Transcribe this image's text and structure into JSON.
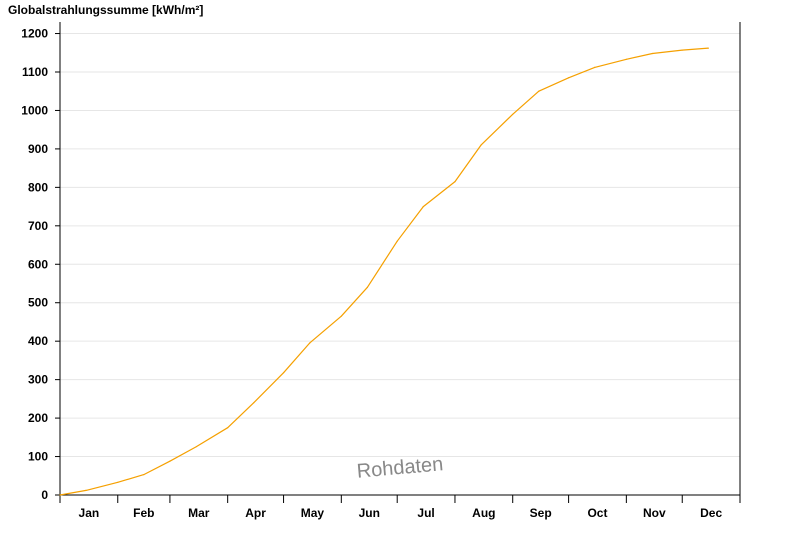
{
  "chart_data": {
    "type": "line",
    "title": "",
    "xlabel": "",
    "ylabel": "Globalstrahlungssumme [kWh/m²]",
    "ylim": [
      0,
      1230
    ],
    "yticks": [
      0,
      100,
      200,
      300,
      400,
      500,
      600,
      700,
      800,
      900,
      1000,
      1100,
      1200
    ],
    "categories": [
      "Jan",
      "Feb",
      "Mar",
      "Apr",
      "May",
      "Jun",
      "Jul",
      "Aug",
      "Sep",
      "Oct",
      "Nov",
      "Dec"
    ],
    "grid": true,
    "legend": "none",
    "series": [
      {
        "color": "#F5A000",
        "x": [
          1,
          15,
          32,
          46,
          60,
          74,
          91,
          105,
          121,
          135,
          152,
          166,
          182,
          196,
          213,
          227,
          244,
          258,
          274,
          288,
          305,
          319,
          335,
          349
        ],
        "y": [
          0,
          12,
          33,
          53,
          88,
          125,
          175,
          240,
          318,
          395,
          465,
          540,
          660,
          750,
          815,
          910,
          990,
          1050,
          1085,
          1112,
          1133,
          1148,
          1157,
          1162
        ]
      }
    ],
    "watermark": "Rohdaten"
  }
}
